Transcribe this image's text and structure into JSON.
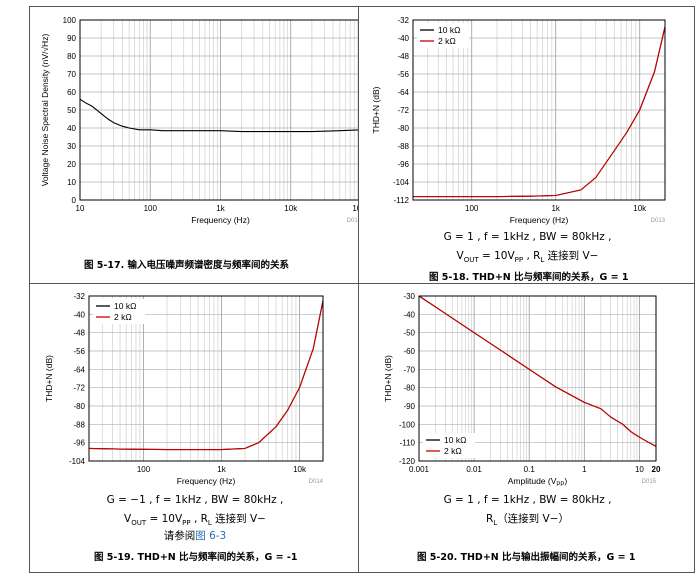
{
  "fig17": {
    "caption": "图 5-17. 输入电压噪声频谱密度与频率间的关系",
    "tag": "D010",
    "chart_data": {
      "type": "line",
      "title": "",
      "xlabel": "Frequency (Hz)",
      "ylabel": "Voltage Noise Spectral Density (nV/√Hz)",
      "xscale": "log",
      "xlim": [
        10,
        100000
      ],
      "ylim": [
        0,
        100
      ],
      "xticks": [
        "10",
        "100",
        "1k",
        "10k",
        "100k"
      ],
      "yticks": [
        "0",
        "10",
        "20",
        "30",
        "40",
        "50",
        "60",
        "70",
        "80",
        "90",
        "100"
      ],
      "grid": true,
      "series": [
        {
          "color": "#000000",
          "x": [
            10,
            12,
            15,
            20,
            25,
            30,
            40,
            50,
            70,
            100,
            150,
            200,
            300,
            500,
            700,
            1000,
            2000,
            3000,
            5000,
            10000,
            20000,
            50000,
            100000
          ],
          "y": [
            56,
            54,
            52,
            48,
            45,
            43,
            41,
            40,
            39,
            39,
            38.5,
            38.5,
            38.5,
            38.5,
            38.5,
            38.5,
            38,
            38,
            38,
            38,
            38,
            38.5,
            39
          ]
        }
      ]
    }
  },
  "fig18": {
    "caption": "图 5-18. THD+N 比与频率间的关系，G = 1",
    "conditions_line1": "G = 1 , f = 1kHz , BW = 80kHz ,",
    "conditions_line2_a": "V",
    "conditions_line2_b": "OUT",
    "conditions_line2_c": " = 10V",
    "conditions_line2_d": "PP",
    "conditions_line2_e": " , R",
    "conditions_line2_f": "L",
    "conditions_line2_g": " 连接到 V−",
    "tag": "D013",
    "chart_data": {
      "type": "line",
      "title": "",
      "xlabel": "Frequency (Hz)",
      "ylabel": "THD+N (dB)",
      "xscale": "log",
      "xlim": [
        20,
        20000
      ],
      "ylim": [
        -112,
        -32
      ],
      "xticks": [
        "100",
        "1k",
        "10k"
      ],
      "yticks": [
        "-32",
        "-40",
        "-48",
        "-56",
        "-64",
        "-72",
        "-80",
        "-88",
        "-96",
        "-104",
        "-112"
      ],
      "grid": true,
      "legend": "top-left",
      "series": [
        {
          "name": "10 kΩ",
          "color": "#000000",
          "x": [
            20,
            50,
            100,
            200,
            500,
            1000,
            2000,
            3000,
            5000,
            7000,
            10000,
            15000,
            20000
          ],
          "y": [
            -110.5,
            -110.5,
            -110.5,
            -110.5,
            -110.3,
            -110,
            -107.5,
            -102,
            -90,
            -82,
            -72,
            -55,
            -35
          ]
        },
        {
          "name": "2 kΩ",
          "color": "#cc0000",
          "x": [
            20,
            50,
            100,
            200,
            500,
            1000,
            2000,
            3000,
            5000,
            7000,
            10000,
            15000,
            20000
          ],
          "y": [
            -110.5,
            -110.5,
            -110.5,
            -110.5,
            -110.3,
            -110,
            -107.5,
            -102,
            -90,
            -82,
            -72,
            -55,
            -35
          ]
        }
      ]
    }
  },
  "fig19": {
    "caption": "图 5-19. THD+N 比与频率间的关系，G = -1",
    "conditions_line1": "G = −1 , f = 1kHz , BW = 80kHz ,",
    "conditions_line2_a": "V",
    "conditions_line2_b": "OUT",
    "conditions_line2_c": " = 10V",
    "conditions_line2_d": "PP",
    "conditions_line2_e": " , R",
    "conditions_line2_f": "L",
    "conditions_line2_g": " 连接到 V−",
    "conditions_line3_a": "请参阅",
    "conditions_line3_b": "图 6-3",
    "tag": "D014",
    "chart_data": {
      "type": "line",
      "title": "",
      "xlabel": "Frequency (Hz)",
      "ylabel": "THD+N (dB)",
      "xscale": "log",
      "xlim": [
        20,
        20000
      ],
      "ylim": [
        -104,
        -32
      ],
      "xticks": [
        "100",
        "1k",
        "10k"
      ],
      "yticks": [
        "-32",
        "-40",
        "-48",
        "-56",
        "-64",
        "-72",
        "-80",
        "-88",
        "-96",
        "-104"
      ],
      "grid": true,
      "legend": "top-left",
      "series": [
        {
          "name": "10 kΩ",
          "color": "#000000",
          "x": [
            20,
            50,
            100,
            200,
            500,
            1000,
            2000,
            3000,
            5000,
            7000,
            10000,
            15000,
            20000
          ],
          "y": [
            -98.5,
            -98.8,
            -98.9,
            -99,
            -99,
            -99,
            -98.5,
            -96,
            -89,
            -82,
            -72,
            -55,
            -34
          ]
        },
        {
          "name": "2 kΩ",
          "color": "#cc0000",
          "x": [
            20,
            50,
            100,
            200,
            500,
            1000,
            2000,
            3000,
            5000,
            7000,
            10000,
            15000,
            20000
          ],
          "y": [
            -98.5,
            -98.8,
            -98.9,
            -99,
            -99,
            -99,
            -98.5,
            -96,
            -89,
            -82,
            -72,
            -55,
            -34
          ]
        }
      ]
    }
  },
  "fig20": {
    "caption": "图 5-20. THD+N 比与输出振幅间的关系，G = 1",
    "conditions_line1": "G = 1 , f = 1kHz , BW = 80kHz ,",
    "conditions_line2_a": "R",
    "conditions_line2_b": "L",
    "conditions_line2_c": "（连接到 V−）",
    "tag": "D015",
    "chart_data": {
      "type": "line",
      "title": "",
      "xlabel": "Amplitude (V",
      "xlabel_sub": "PP",
      "xlabel_end": ")",
      "ylabel": "THD+N (dB)",
      "xscale": "log",
      "xlim": [
        0.001,
        20
      ],
      "ylim": [
        -120,
        -30
      ],
      "xticks": [
        "0.001",
        "0.01",
        "0.1",
        "1",
        "10",
        "20"
      ],
      "yticks": [
        "-30",
        "-40",
        "-50",
        "-60",
        "-70",
        "-80",
        "-90",
        "-100",
        "-110",
        "-120"
      ],
      "grid": true,
      "legend": "bottom-left",
      "series": [
        {
          "name": "10 kΩ",
          "color": "#000000",
          "x": [
            0.001,
            0.003,
            0.01,
            0.03,
            0.1,
            0.3,
            1,
            2,
            3,
            5,
            7,
            10,
            15,
            20
          ],
          "y": [
            -30,
            -39.5,
            -50,
            -59.5,
            -70,
            -79.5,
            -88,
            -91.5,
            -96,
            -100,
            -104,
            -107,
            -110,
            -112
          ]
        },
        {
          "name": "2 kΩ",
          "color": "#cc0000",
          "x": [
            0.001,
            0.003,
            0.01,
            0.03,
            0.1,
            0.3,
            1,
            2,
            3,
            5,
            7,
            10,
            15,
            20
          ],
          "y": [
            -30,
            -39.5,
            -50,
            -59.5,
            -70,
            -79.5,
            -88,
            -91.5,
            -96,
            -100,
            -104,
            -107,
            -110,
            -112
          ]
        }
      ]
    }
  }
}
